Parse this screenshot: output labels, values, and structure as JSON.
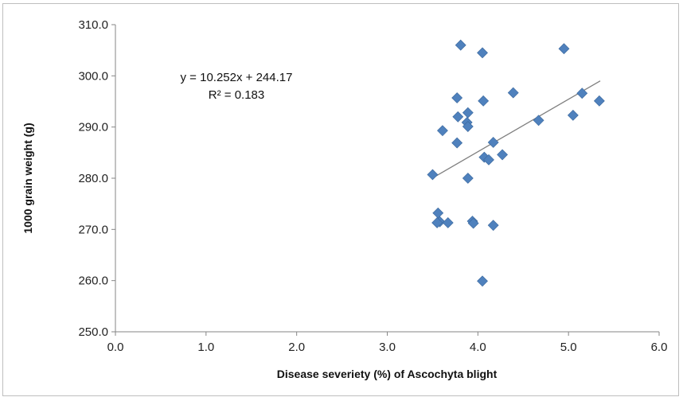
{
  "chart_data": {
    "type": "scatter",
    "title": "",
    "xlabel": "Disease severiety (%) of Ascochyta blight",
    "ylabel": "1000 grain weight (g)",
    "xlim": [
      0,
      6
    ],
    "ylim": [
      250,
      310
    ],
    "x_ticks": [
      "0.0",
      "1.0",
      "2.0",
      "3.0",
      "4.0",
      "5.0",
      "6.0"
    ],
    "y_ticks": [
      "250.0",
      "260.0",
      "270.0",
      "280.0",
      "290.0",
      "300.0",
      "310.0"
    ],
    "grid": false,
    "marker_color": "#4f81bd",
    "trendline_color": "#7f7f7f",
    "trendline": {
      "slope": 10.252,
      "intercept": 244.17,
      "x_range": [
        3.5,
        5.35
      ]
    },
    "annotation": {
      "equation": "y = 10.252x + 244.17",
      "r2": "R² = 0.183"
    },
    "points": [
      {
        "x": 3.81,
        "y": 306.0
      },
      {
        "x": 4.05,
        "y": 304.5
      },
      {
        "x": 4.95,
        "y": 305.3
      },
      {
        "x": 3.77,
        "y": 295.7
      },
      {
        "x": 4.06,
        "y": 295.1
      },
      {
        "x": 4.39,
        "y": 296.7
      },
      {
        "x": 5.15,
        "y": 296.6
      },
      {
        "x": 5.34,
        "y": 295.1
      },
      {
        "x": 3.89,
        "y": 292.8
      },
      {
        "x": 3.78,
        "y": 292.0
      },
      {
        "x": 3.88,
        "y": 290.9
      },
      {
        "x": 3.89,
        "y": 290.1
      },
      {
        "x": 3.61,
        "y": 289.3
      },
      {
        "x": 4.67,
        "y": 291.3
      },
      {
        "x": 5.05,
        "y": 292.3
      },
      {
        "x": 3.77,
        "y": 286.9
      },
      {
        "x": 4.17,
        "y": 287.0
      },
      {
        "x": 4.27,
        "y": 284.6
      },
      {
        "x": 4.07,
        "y": 284.1
      },
      {
        "x": 4.12,
        "y": 283.6
      },
      {
        "x": 3.5,
        "y": 280.7
      },
      {
        "x": 3.89,
        "y": 280.0
      },
      {
        "x": 3.56,
        "y": 273.2
      },
      {
        "x": 3.58,
        "y": 271.5
      },
      {
        "x": 3.55,
        "y": 271.3
      },
      {
        "x": 3.67,
        "y": 271.3
      },
      {
        "x": 3.94,
        "y": 271.6
      },
      {
        "x": 3.95,
        "y": 271.2
      },
      {
        "x": 4.17,
        "y": 270.8
      },
      {
        "x": 4.05,
        "y": 259.9
      }
    ]
  }
}
